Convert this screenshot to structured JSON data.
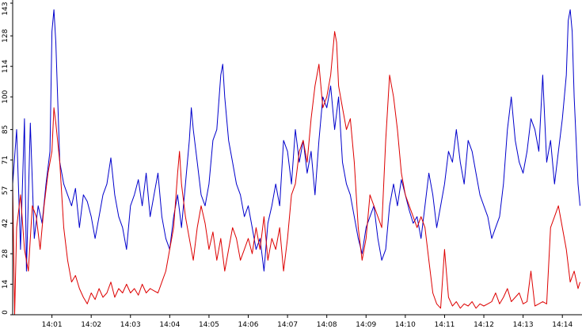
{
  "chart_data": {
    "type": "line",
    "title": "",
    "xlabel": "",
    "ylabel": "",
    "x_tick_labels": [
      "14:01",
      "14:02",
      "14:03",
      "14:04",
      "14:05",
      "14:06",
      "14:07",
      "14:08",
      "14:09",
      "14:10",
      "14:11",
      "14:12",
      "14:13",
      "14:14"
    ],
    "y_tick_labels": [
      "0",
      "14",
      "28",
      "42",
      "57",
      "71",
      "85",
      "100",
      "114",
      "128",
      "143"
    ],
    "x_range_minutes": [
      0.0,
      14.5
    ],
    "x_ticks_minutes": [
      1,
      2,
      3,
      4,
      5,
      6,
      7,
      8,
      9,
      10,
      11,
      12,
      13,
      14
    ],
    "y_ticks": [
      0,
      14,
      28,
      42,
      57,
      71,
      85,
      100,
      114,
      128,
      143
    ],
    "ylim": [
      0,
      143
    ],
    "grid": false,
    "legend": "none",
    "series": [
      {
        "color": "#0000cc",
        "points": [
          [
            0.0,
            60
          ],
          [
            0.1,
            85
          ],
          [
            0.2,
            30
          ],
          [
            0.3,
            90
          ],
          [
            0.35,
            20
          ],
          [
            0.45,
            88
          ],
          [
            0.55,
            35
          ],
          [
            0.65,
            50
          ],
          [
            0.75,
            42
          ],
          [
            0.85,
            60
          ],
          [
            0.95,
            75
          ],
          [
            1.0,
            130
          ],
          [
            1.05,
            140
          ],
          [
            1.1,
            125
          ],
          [
            1.2,
            70
          ],
          [
            1.3,
            60
          ],
          [
            1.4,
            55
          ],
          [
            1.5,
            50
          ],
          [
            1.6,
            58
          ],
          [
            1.7,
            40
          ],
          [
            1.8,
            55
          ],
          [
            1.9,
            52
          ],
          [
            2.0,
            45
          ],
          [
            2.1,
            35
          ],
          [
            2.2,
            45
          ],
          [
            2.3,
            55
          ],
          [
            2.4,
            60
          ],
          [
            2.5,
            72
          ],
          [
            2.6,
            55
          ],
          [
            2.7,
            45
          ],
          [
            2.8,
            40
          ],
          [
            2.9,
            30
          ],
          [
            3.0,
            50
          ],
          [
            3.1,
            55
          ],
          [
            3.2,
            62
          ],
          [
            3.3,
            50
          ],
          [
            3.4,
            65
          ],
          [
            3.5,
            45
          ],
          [
            3.6,
            55
          ],
          [
            3.7,
            65
          ],
          [
            3.8,
            45
          ],
          [
            3.9,
            35
          ],
          [
            4.0,
            30
          ],
          [
            4.1,
            45
          ],
          [
            4.2,
            55
          ],
          [
            4.3,
            40
          ],
          [
            4.4,
            60
          ],
          [
            4.5,
            80
          ],
          [
            4.55,
            95
          ],
          [
            4.6,
            85
          ],
          [
            4.7,
            70
          ],
          [
            4.8,
            55
          ],
          [
            4.9,
            50
          ],
          [
            5.0,
            60
          ],
          [
            5.1,
            80
          ],
          [
            5.2,
            85
          ],
          [
            5.3,
            110
          ],
          [
            5.35,
            115
          ],
          [
            5.4,
            100
          ],
          [
            5.5,
            80
          ],
          [
            5.6,
            70
          ],
          [
            5.7,
            60
          ],
          [
            5.8,
            55
          ],
          [
            5.9,
            45
          ],
          [
            6.0,
            50
          ],
          [
            6.1,
            40
          ],
          [
            6.2,
            30
          ],
          [
            6.3,
            35
          ],
          [
            6.4,
            20
          ],
          [
            6.5,
            42
          ],
          [
            6.6,
            50
          ],
          [
            6.7,
            60
          ],
          [
            6.8,
            50
          ],
          [
            6.9,
            80
          ],
          [
            7.0,
            75
          ],
          [
            7.1,
            60
          ],
          [
            7.2,
            85
          ],
          [
            7.3,
            70
          ],
          [
            7.4,
            80
          ],
          [
            7.5,
            65
          ],
          [
            7.6,
            75
          ],
          [
            7.7,
            55
          ],
          [
            7.8,
            80
          ],
          [
            7.9,
            100
          ],
          [
            8.0,
            95
          ],
          [
            8.1,
            105
          ],
          [
            8.2,
            85
          ],
          [
            8.3,
            100
          ],
          [
            8.4,
            70
          ],
          [
            8.5,
            60
          ],
          [
            8.6,
            55
          ],
          [
            8.7,
            45
          ],
          [
            8.8,
            35
          ],
          [
            8.9,
            28
          ],
          [
            9.0,
            40
          ],
          [
            9.1,
            45
          ],
          [
            9.2,
            50
          ],
          [
            9.3,
            35
          ],
          [
            9.4,
            25
          ],
          [
            9.5,
            30
          ],
          [
            9.6,
            50
          ],
          [
            9.7,
            60
          ],
          [
            9.8,
            50
          ],
          [
            9.9,
            62
          ],
          [
            10.0,
            55
          ],
          [
            10.1,
            48
          ],
          [
            10.2,
            42
          ],
          [
            10.3,
            45
          ],
          [
            10.4,
            35
          ],
          [
            10.5,
            50
          ],
          [
            10.6,
            65
          ],
          [
            10.7,
            55
          ],
          [
            10.8,
            40
          ],
          [
            10.9,
            50
          ],
          [
            11.0,
            60
          ],
          [
            11.1,
            75
          ],
          [
            11.2,
            70
          ],
          [
            11.3,
            85
          ],
          [
            11.4,
            70
          ],
          [
            11.5,
            60
          ],
          [
            11.6,
            80
          ],
          [
            11.7,
            75
          ],
          [
            11.8,
            65
          ],
          [
            11.9,
            55
          ],
          [
            12.0,
            50
          ],
          [
            12.1,
            45
          ],
          [
            12.2,
            35
          ],
          [
            12.3,
            40
          ],
          [
            12.4,
            45
          ],
          [
            12.5,
            60
          ],
          [
            12.6,
            85
          ],
          [
            12.7,
            100
          ],
          [
            12.8,
            80
          ],
          [
            12.9,
            70
          ],
          [
            13.0,
            65
          ],
          [
            13.1,
            75
          ],
          [
            13.2,
            90
          ],
          [
            13.3,
            85
          ],
          [
            13.4,
            75
          ],
          [
            13.5,
            110
          ],
          [
            13.55,
            90
          ],
          [
            13.6,
            70
          ],
          [
            13.7,
            80
          ],
          [
            13.8,
            60
          ],
          [
            13.9,
            75
          ],
          [
            14.0,
            90
          ],
          [
            14.1,
            110
          ],
          [
            14.15,
            135
          ],
          [
            14.2,
            140
          ],
          [
            14.25,
            130
          ],
          [
            14.3,
            100
          ],
          [
            14.35,
            80
          ],
          [
            14.4,
            60
          ],
          [
            14.45,
            50
          ]
        ]
      },
      {
        "color": "#dd0000",
        "points": [
          [
            0.0,
            60
          ],
          [
            0.05,
            0
          ],
          [
            0.1,
            40
          ],
          [
            0.2,
            55
          ],
          [
            0.3,
            30
          ],
          [
            0.4,
            20
          ],
          [
            0.5,
            50
          ],
          [
            0.6,
            45
          ],
          [
            0.7,
            30
          ],
          [
            0.8,
            50
          ],
          [
            0.9,
            65
          ],
          [
            1.0,
            75
          ],
          [
            1.05,
            95
          ],
          [
            1.1,
            88
          ],
          [
            1.2,
            70
          ],
          [
            1.3,
            40
          ],
          [
            1.4,
            25
          ],
          [
            1.5,
            15
          ],
          [
            1.6,
            18
          ],
          [
            1.7,
            12
          ],
          [
            1.8,
            8
          ],
          [
            1.9,
            5
          ],
          [
            2.0,
            10
          ],
          [
            2.1,
            7
          ],
          [
            2.2,
            12
          ],
          [
            2.3,
            8
          ],
          [
            2.4,
            10
          ],
          [
            2.5,
            15
          ],
          [
            2.6,
            8
          ],
          [
            2.7,
            12
          ],
          [
            2.8,
            10
          ],
          [
            2.9,
            14
          ],
          [
            3.0,
            10
          ],
          [
            3.1,
            12
          ],
          [
            3.2,
            9
          ],
          [
            3.3,
            14
          ],
          [
            3.4,
            10
          ],
          [
            3.5,
            12
          ],
          [
            3.6,
            11
          ],
          [
            3.7,
            10
          ],
          [
            3.8,
            15
          ],
          [
            3.9,
            20
          ],
          [
            4.0,
            30
          ],
          [
            4.1,
            40
          ],
          [
            4.2,
            65
          ],
          [
            4.25,
            75
          ],
          [
            4.3,
            60
          ],
          [
            4.4,
            45
          ],
          [
            4.5,
            35
          ],
          [
            4.6,
            25
          ],
          [
            4.7,
            40
          ],
          [
            4.8,
            50
          ],
          [
            4.9,
            42
          ],
          [
            5.0,
            30
          ],
          [
            5.1,
            38
          ],
          [
            5.2,
            25
          ],
          [
            5.3,
            35
          ],
          [
            5.4,
            20
          ],
          [
            5.5,
            30
          ],
          [
            5.6,
            40
          ],
          [
            5.7,
            35
          ],
          [
            5.8,
            25
          ],
          [
            5.9,
            30
          ],
          [
            6.0,
            35
          ],
          [
            6.1,
            28
          ],
          [
            6.2,
            40
          ],
          [
            6.3,
            30
          ],
          [
            6.4,
            45
          ],
          [
            6.5,
            25
          ],
          [
            6.6,
            35
          ],
          [
            6.7,
            30
          ],
          [
            6.8,
            40
          ],
          [
            6.9,
            20
          ],
          [
            7.0,
            35
          ],
          [
            7.1,
            55
          ],
          [
            7.2,
            60
          ],
          [
            7.3,
            75
          ],
          [
            7.4,
            80
          ],
          [
            7.5,
            70
          ],
          [
            7.6,
            90
          ],
          [
            7.7,
            105
          ],
          [
            7.8,
            115
          ],
          [
            7.9,
            95
          ],
          [
            8.0,
            100
          ],
          [
            8.1,
            110
          ],
          [
            8.2,
            130
          ],
          [
            8.25,
            125
          ],
          [
            8.3,
            105
          ],
          [
            8.4,
            95
          ],
          [
            8.5,
            85
          ],
          [
            8.6,
            90
          ],
          [
            8.7,
            70
          ],
          [
            8.8,
            40
          ],
          [
            8.9,
            25
          ],
          [
            9.0,
            35
          ],
          [
            9.1,
            55
          ],
          [
            9.2,
            50
          ],
          [
            9.3,
            45
          ],
          [
            9.4,
            40
          ],
          [
            9.5,
            80
          ],
          [
            9.6,
            110
          ],
          [
            9.7,
            100
          ],
          [
            9.8,
            85
          ],
          [
            9.9,
            65
          ],
          [
            10.0,
            55
          ],
          [
            10.1,
            50
          ],
          [
            10.2,
            45
          ],
          [
            10.3,
            40
          ],
          [
            10.4,
            45
          ],
          [
            10.5,
            40
          ],
          [
            10.6,
            25
          ],
          [
            10.7,
            10
          ],
          [
            10.8,
            5
          ],
          [
            10.9,
            3
          ],
          [
            11.0,
            30
          ],
          [
            11.1,
            8
          ],
          [
            11.2,
            4
          ],
          [
            11.3,
            6
          ],
          [
            11.4,
            3
          ],
          [
            11.5,
            5
          ],
          [
            11.6,
            4
          ],
          [
            11.7,
            6
          ],
          [
            11.8,
            3
          ],
          [
            11.9,
            5
          ],
          [
            12.0,
            4
          ],
          [
            12.1,
            5
          ],
          [
            12.2,
            6
          ],
          [
            12.3,
            10
          ],
          [
            12.4,
            5
          ],
          [
            12.5,
            8
          ],
          [
            12.6,
            12
          ],
          [
            12.7,
            6
          ],
          [
            12.8,
            8
          ],
          [
            12.9,
            10
          ],
          [
            13.0,
            5
          ],
          [
            13.1,
            6
          ],
          [
            13.2,
            20
          ],
          [
            13.3,
            4
          ],
          [
            13.4,
            5
          ],
          [
            13.5,
            6
          ],
          [
            13.6,
            5
          ],
          [
            13.7,
            40
          ],
          [
            13.8,
            45
          ],
          [
            13.9,
            50
          ],
          [
            14.0,
            40
          ],
          [
            14.1,
            30
          ],
          [
            14.2,
            15
          ],
          [
            14.3,
            20
          ],
          [
            14.4,
            12
          ],
          [
            14.45,
            15
          ]
        ]
      }
    ]
  }
}
